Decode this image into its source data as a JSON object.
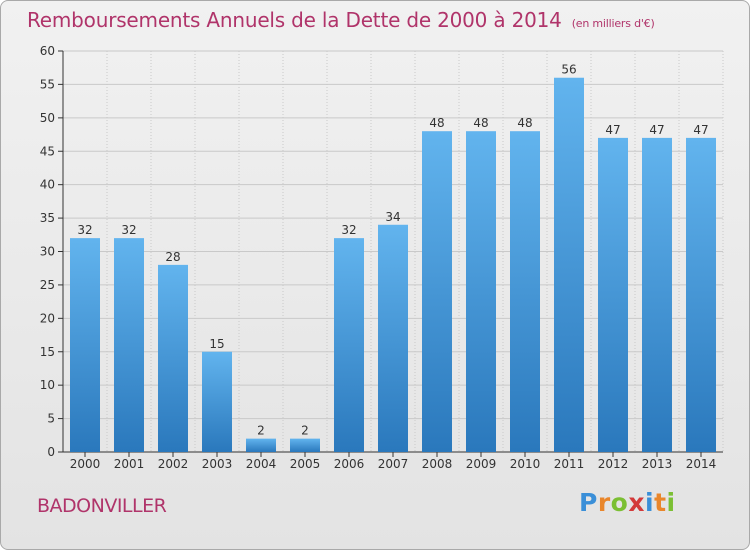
{
  "header": {
    "title": "Remboursements Annuels de la Dette de 2000 à 2014",
    "unit": "(en milliers d'€)"
  },
  "footer": {
    "commune": "BADONVILLER",
    "logo": {
      "letters": [
        "P",
        "r",
        "o",
        "x",
        "i",
        "t",
        "i"
      ],
      "colors": [
        "#3a8fd8",
        "#e9862b",
        "#7bbf33",
        "#d33a3a",
        "#3a8fd8",
        "#e9862b",
        "#7bbf33"
      ]
    }
  },
  "colors": {
    "bar_top": "#62b4ee",
    "bar_bottom": "#2a78bc",
    "grid": "#c9c9c9",
    "axis": "#333333",
    "text": "#333333",
    "accent": "#b0346a"
  },
  "chart_data": {
    "type": "bar",
    "categories": [
      "2000",
      "2001",
      "2002",
      "2003",
      "2004",
      "2005",
      "2006",
      "2007",
      "2008",
      "2009",
      "2010",
      "2011",
      "2012",
      "2013",
      "2014"
    ],
    "values": [
      32,
      32,
      28,
      15,
      2,
      2,
      32,
      34,
      48,
      48,
      48,
      56,
      47,
      47,
      47
    ],
    "ylim": [
      0,
      60
    ],
    "yticks": [
      0,
      5,
      10,
      15,
      20,
      25,
      30,
      35,
      40,
      45,
      50,
      55,
      60
    ],
    "grid": true,
    "data_labels": true
  }
}
